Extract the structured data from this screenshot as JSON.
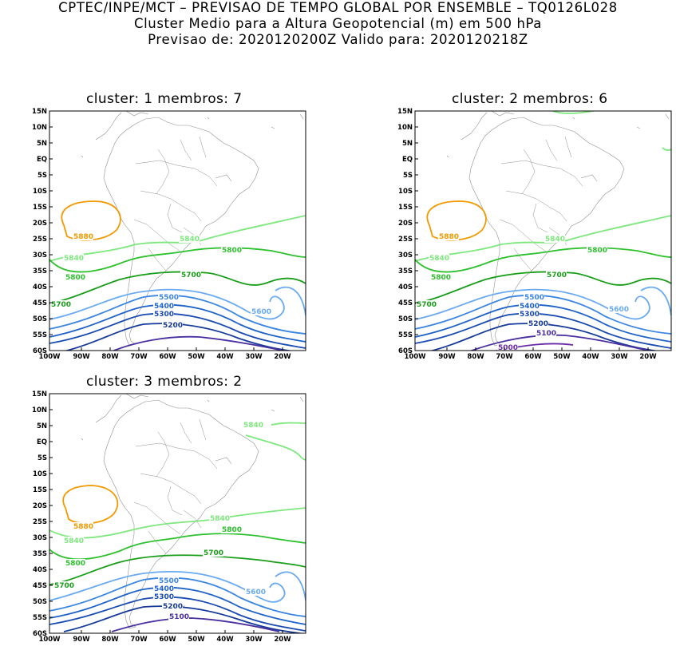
{
  "header": {
    "line1": "CPTEC/INPE/MCT – PREVISAO DE TEMPO GLOBAL POR ENSEMBLE – TQ0126L028",
    "line2": "Cluster Medio para a Altura Geopotencial (m) em 500 hPa",
    "line3": "Previsao de: 2020120200Z    Valido para: 2020120218Z"
  },
  "axes": {
    "lat_labels": [
      "15N",
      "10N",
      "5N",
      "EQ",
      "5S",
      "10S",
      "15S",
      "20S",
      "25S",
      "30S",
      "35S",
      "40S",
      "45S",
      "50S",
      "55S",
      "60S"
    ],
    "lon_labels": [
      "100W",
      "90W",
      "80W",
      "70W",
      "60W",
      "50W",
      "40W",
      "30W",
      "20W"
    ]
  },
  "colors": {
    "c5840": "#7ee87e",
    "c5800": "#2ec12e",
    "c5700": "#1a9e1a",
    "c5880": "#f29900",
    "c5600": "#6aaaf0",
    "c5500": "#3b86e0",
    "c5400": "#1f63c8",
    "c5300": "#1a4bb0",
    "c5200": "#163a99",
    "c5100": "#4a2fa0",
    "c5000": "#6a2aa8",
    "coast": "#909090"
  },
  "panels": [
    {
      "title": "cluster: 1   membros: 7",
      "contour_labels": {
        "c5880": "5880",
        "c5840a": "5840",
        "c5840b": "5840",
        "c5800a": "5800",
        "c5800b": "5800",
        "c5700a": "5700",
        "c5700b": "5700",
        "c5600": "5600",
        "c5500": "5500",
        "c5400": "5400",
        "c5300": "5300",
        "c5200": "5200"
      }
    },
    {
      "title": "cluster: 2   membros: 6",
      "contour_labels": {
        "c5880": "5880",
        "c5840a": "5840",
        "c5840b": "5840",
        "c5800a": "5800",
        "c5800b": "5800",
        "c5700a": "5700",
        "c5700b": "5700",
        "c5600": "5600",
        "c5500": "5500",
        "c5400": "5400",
        "c5300": "5300",
        "c5200": "5200",
        "c5100": "5100",
        "c5000": "5000"
      }
    },
    {
      "title": "cluster: 3   membros: 2",
      "contour_labels": {
        "c5880": "5880",
        "c5840a": "5840",
        "c5840b": "5840",
        "c5840c": "5840",
        "c5800a": "5800",
        "c5800b": "5800",
        "c5700a": "5700",
        "c5700b": "5700",
        "c5600": "5600",
        "c5500": "5500",
        "c5400": "5400",
        "c5300": "5300",
        "c5200": "5200",
        "c5100": "5100"
      }
    }
  ]
}
